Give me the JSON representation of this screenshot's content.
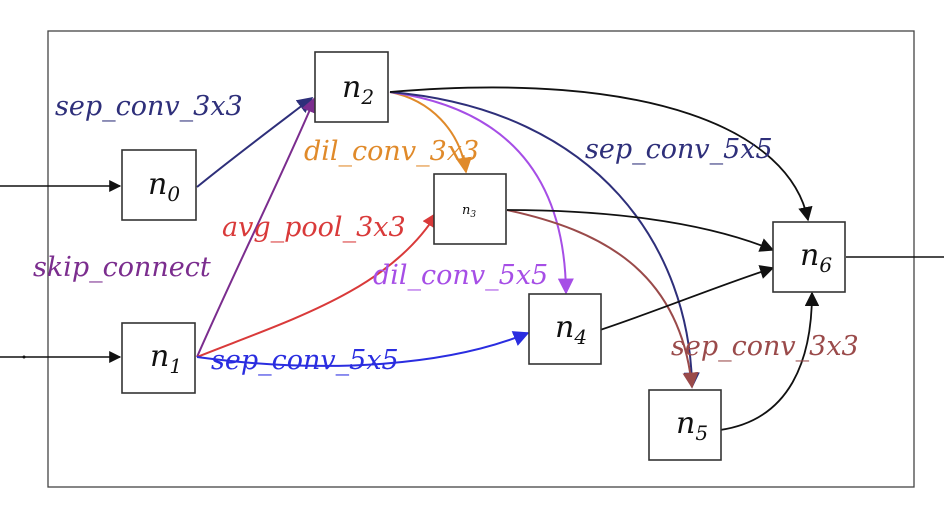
{
  "nodes": {
    "n0": {
      "base": "n",
      "sub": "0"
    },
    "n1": {
      "base": "n",
      "sub": "1"
    },
    "n2": {
      "base": "n",
      "sub": "2"
    },
    "n3": {
      "base": "n",
      "sub": "3"
    },
    "n4": {
      "base": "n",
      "sub": "4"
    },
    "n5": {
      "base": "n",
      "sub": "5"
    },
    "n6": {
      "base": "n",
      "sub": "6"
    }
  },
  "edges": [
    {
      "from": "n0",
      "to": "n2",
      "label": "sep_conv_3x3",
      "color": "#2e2f7a"
    },
    {
      "from": "n1",
      "to": "n2",
      "label": "skip_connect",
      "color": "#7b2d8e"
    },
    {
      "from": "n2",
      "to": "n3",
      "label": "dil_conv_3x3",
      "color": "#e08a2a"
    },
    {
      "from": "n1",
      "to": "n3",
      "label": "avg_pool_3x3",
      "color": "#d93a3a"
    },
    {
      "from": "n2",
      "to": "n4",
      "label": "dil_conv_5x5",
      "color": "#a64ee6"
    },
    {
      "from": "n1",
      "to": "n4",
      "label": "sep_conv_5x5",
      "color": "#2a2de0"
    },
    {
      "from": "n2",
      "to": "n5",
      "label": "sep_conv_5x5",
      "color": "#2e2f7a"
    },
    {
      "from": "n3",
      "to": "n5",
      "label": "sep_conv_3x3",
      "color": "#9a4a4a"
    },
    {
      "from": "n2",
      "to": "n6",
      "label": "",
      "color": "#111111"
    },
    {
      "from": "n3",
      "to": "n6",
      "label": "",
      "color": "#111111"
    },
    {
      "from": "n4",
      "to": "n6",
      "label": "",
      "color": "#111111"
    },
    {
      "from": "n5",
      "to": "n6",
      "label": "",
      "color": "#111111"
    }
  ]
}
